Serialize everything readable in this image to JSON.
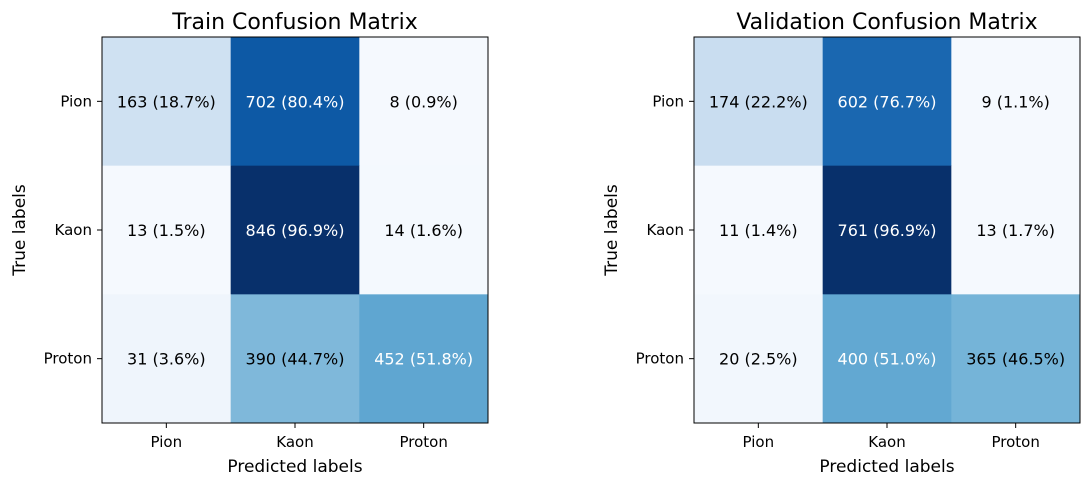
{
  "chart_data": [
    {
      "type": "heatmap",
      "title": "Train Confusion Matrix",
      "xlabel": "Predicted labels",
      "ylabel": "True labels",
      "x_categories": [
        "Pion",
        "Kaon",
        "Proton"
      ],
      "y_categories": [
        "Pion",
        "Kaon",
        "Proton"
      ],
      "colormap": "Blues",
      "values": [
        [
          163,
          702,
          8
        ],
        [
          13,
          846,
          14
        ],
        [
          31,
          390,
          452
        ]
      ],
      "cell_labels": [
        [
          "163 (18.7%)",
          "702 (80.4%)",
          "8 (0.9%)"
        ],
        [
          "13 (1.5%)",
          "846 (96.9%)",
          "14 (1.6%)"
        ],
        [
          "31 (3.6%)",
          "390 (44.7%)",
          "452 (51.8%)"
        ]
      ],
      "cell_colors": [
        [
          "#cfe1f2",
          "#0d59a5",
          "#f5f9fe"
        ],
        [
          "#f5f9fe",
          "#08306b",
          "#f4f9fe"
        ],
        [
          "#eff5fc",
          "#7fb8da",
          "#5fa6d1"
        ]
      ],
      "text_colors": [
        [
          "#000000",
          "#ffffff",
          "#000000"
        ],
        [
          "#000000",
          "#ffffff",
          "#000000"
        ],
        [
          "#000000",
          "#000000",
          "#ffffff"
        ]
      ]
    },
    {
      "type": "heatmap",
      "title": "Validation Confusion Matrix",
      "xlabel": "Predicted labels",
      "ylabel": "True labels",
      "x_categories": [
        "Pion",
        "Kaon",
        "Proton"
      ],
      "y_categories": [
        "Pion",
        "Kaon",
        "Proton"
      ],
      "colormap": "Blues",
      "values": [
        [
          174,
          602,
          9
        ],
        [
          11,
          761,
          13
        ],
        [
          20,
          400,
          365
        ]
      ],
      "cell_labels": [
        [
          "174 (22.2%)",
          "602 (76.7%)",
          "9 (1.1%)"
        ],
        [
          "11 (1.4%)",
          "761 (96.9%)",
          "13 (1.7%)"
        ],
        [
          "20 (2.5%)",
          "400 (51.0%)",
          "365 (46.5%)"
        ]
      ],
      "cell_colors": [
        [
          "#c9ddf0",
          "#1a67b0",
          "#f5f9fe"
        ],
        [
          "#f5f9fe",
          "#08306b",
          "#f5f9fe"
        ],
        [
          "#f2f7fd",
          "#62a8d2",
          "#75b4d8"
        ]
      ],
      "text_colors": [
        [
          "#000000",
          "#ffffff",
          "#000000"
        ],
        [
          "#000000",
          "#ffffff",
          "#000000"
        ],
        [
          "#000000",
          "#ffffff",
          "#000000"
        ]
      ]
    }
  ]
}
